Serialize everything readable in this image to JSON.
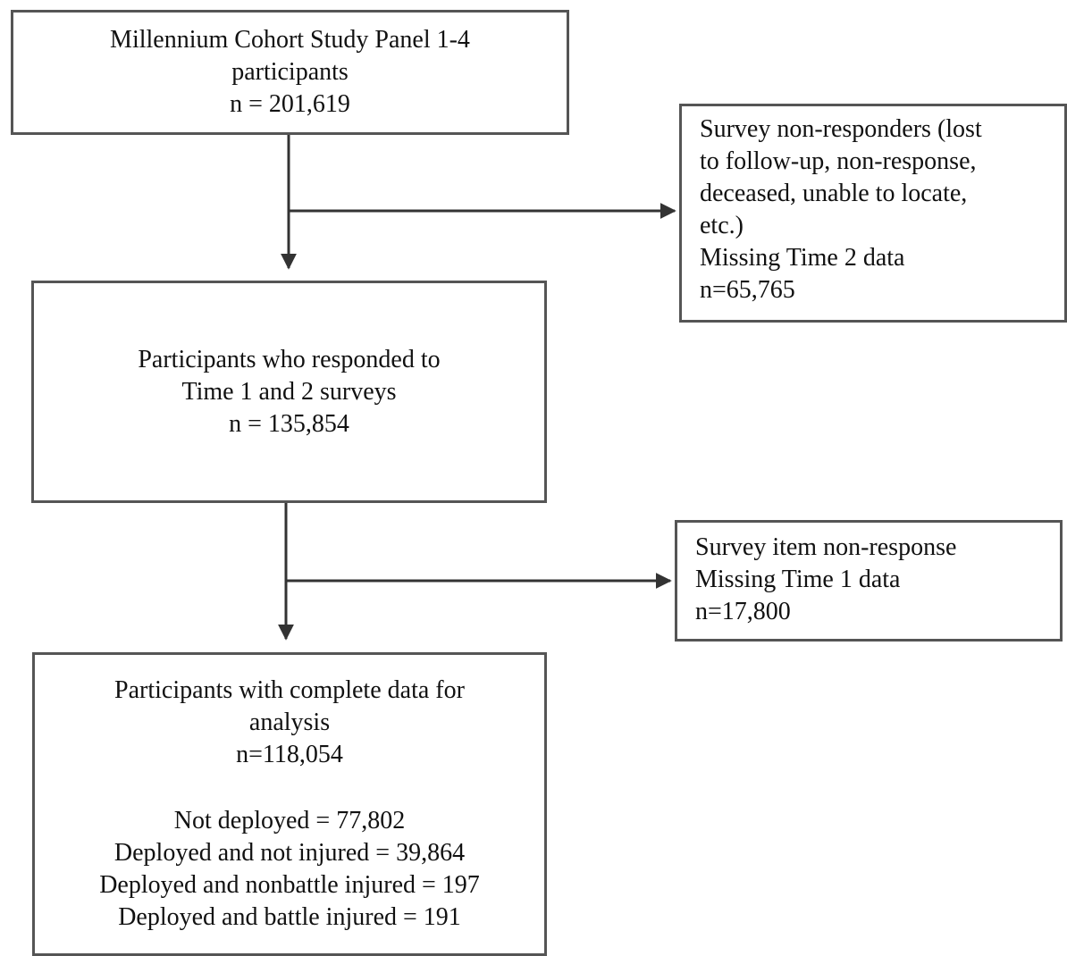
{
  "nodes": [
    {
      "lines": [
        "Millennium Cohort Study Panel 1-4",
        "participants",
        "n = 201,619"
      ]
    },
    {
      "lines": [
        "Survey non-responders (lost",
        "to follow-up, non-response,",
        "deceased, unable to locate,",
        "etc.)",
        "Missing Time 2 data",
        "n=65,765"
      ]
    },
    {
      "lines": [
        "Participants who responded to",
        "Time 1 and 2 surveys",
        "n = 135,854"
      ]
    },
    {
      "lines": [
        "Survey item non-response",
        "Missing Time 1 data",
        "n=17,800"
      ]
    },
    {
      "lines": [
        "Participants with complete data for",
        "analysis",
        "n=118,054"
      ],
      "details": [
        "Not deployed = 77,802",
        "Deployed and not injured = 39,864",
        "Deployed and nonbattle injured = 197",
        "Deployed and battle injured = 191"
      ]
    }
  ]
}
